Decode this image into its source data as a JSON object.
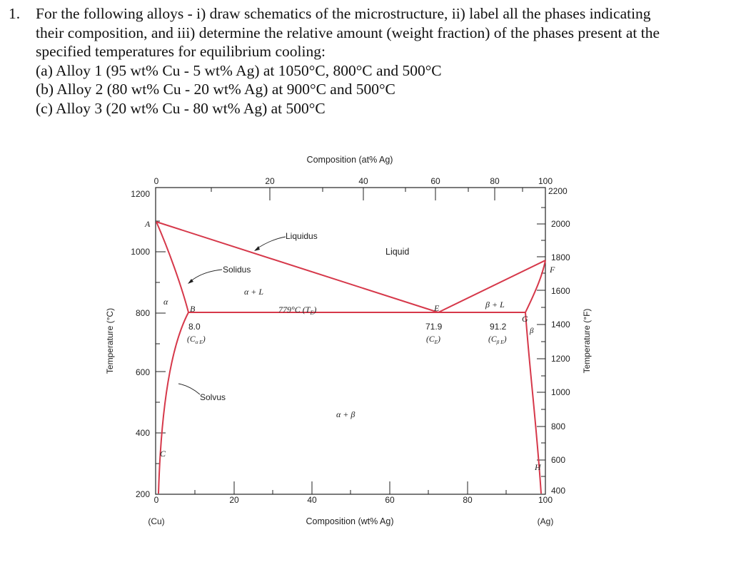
{
  "question": {
    "number": "1.",
    "lines": [
      "For the following alloys - i) draw schematics of the microstructure, ii) label all the phases indicating",
      "their composition, and iii) determine the relative amount (weight fraction) of the phases present at the",
      "specified temperatures for equilibrium cooling:",
      "(a) Alloy 1 (95 wt% Cu - 5 wt% Ag) at 1050°C, 800°C and 500°C",
      "(b) Alloy 2 (80 wt% Cu - 20 wt% Ag) at 900°C and 500°C",
      "(c) Alloy 3 (20 wt% Cu - 80 wt% Ag) at 500°C"
    ]
  },
  "diagram": {
    "top_axis_title": "Composition (at% Ag)",
    "bottom_axis_title": "Composition (wt% Ag)",
    "left_axis_title": "Temperature (°C)",
    "right_axis_title": "Temperature (°F)",
    "end_left": "(Cu)",
    "end_right": "(Ag)",
    "at_ticks": [
      "0",
      "20",
      "40",
      "60",
      "80",
      "100"
    ],
    "wt_ticks": [
      "0",
      "20",
      "40",
      "60",
      "80",
      "100"
    ],
    "c_ticks": [
      "1200",
      "1000",
      "800",
      "600",
      "400",
      "200"
    ],
    "f_ticks": [
      "2200",
      "2000",
      "1800",
      "1600",
      "1400",
      "1200",
      "1000",
      "800",
      "600",
      "400"
    ],
    "point_labels": {
      "A": "A",
      "B": "B",
      "C": "C",
      "E": "E",
      "F": "F",
      "G": "G",
      "H": "H"
    },
    "callouts": {
      "liquidus": "Liquidus",
      "solidus": "Solidus",
      "solvus": "Solvus"
    },
    "regions": {
      "liquid": "Liquid",
      "alpha": "α",
      "alpha_l": "α + L",
      "beta_l": "β + L",
      "beta": "β",
      "alpha_beta": "α + β"
    },
    "eutectic_label": "779°C (T",
    "eutectic_sub": "E",
    "comp_values": {
      "b": "8.0",
      "e": "71.9",
      "g": "91.2"
    },
    "comp_names": {
      "b_open": "(C",
      "b_sub": "α E",
      "b_close": ")",
      "e_open": "(C",
      "e_sub": "E",
      "e_close": ")",
      "g_open": "(C",
      "g_sub": "β E",
      "g_close": ")"
    },
    "phase_line_color": "#d6384a",
    "axis_color": "#222222"
  }
}
